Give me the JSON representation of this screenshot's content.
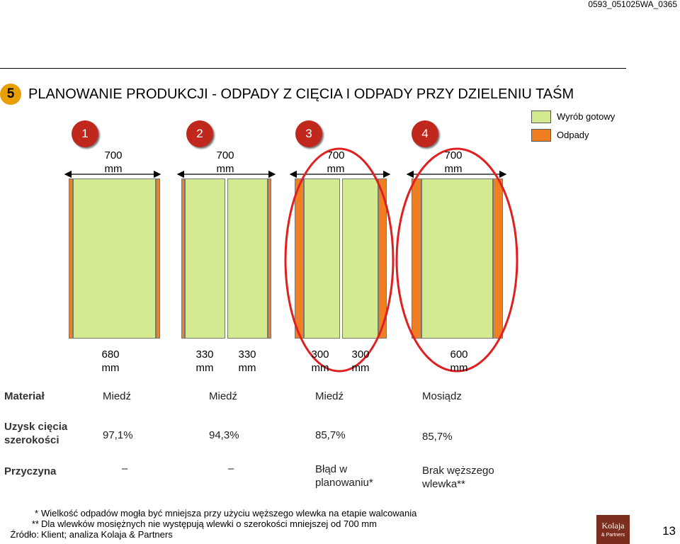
{
  "doc_code": "0593_051025WA_0365",
  "section_number": "5",
  "title": "PLANOWANIE PRODUKCJI - ODPADY Z CIĘCIA I ODPADY PRZY DZIELENIU TAŚM",
  "legend": [
    {
      "label": "Wyrób gotowy",
      "color": "#d3ea90"
    },
    {
      "label": "Odpady",
      "color": "#f07f24"
    }
  ],
  "colors": {
    "finished": "#d3ea90",
    "waste": "#f07f24",
    "badge": "#c0281e",
    "highlight": "#e02020"
  },
  "cases": [
    {
      "number": "1",
      "top_width": [
        "700",
        "mm"
      ],
      "bottom_widths": [
        [
          "680",
          "mm"
        ]
      ],
      "material": "Miedź",
      "yield": "97,1%",
      "reason": [
        "–"
      ]
    },
    {
      "number": "2",
      "top_width": [
        "700",
        "mm"
      ],
      "bottom_widths": [
        [
          "330",
          "mm"
        ],
        [
          "330",
          "mm"
        ]
      ],
      "material": "Miedź",
      "yield": "94,3%",
      "reason": [
        "–"
      ]
    },
    {
      "number": "3",
      "top_width": [
        "700",
        "mm"
      ],
      "bottom_widths": [
        [
          "300",
          "mm"
        ],
        [
          "300",
          "mm"
        ]
      ],
      "material": "Miedź",
      "yield": "85,7%",
      "reason": [
        "Błąd w",
        "planowaniu*"
      ]
    },
    {
      "number": "4",
      "top_width": [
        "700",
        "mm"
      ],
      "bottom_widths": [
        [
          "600",
          "mm"
        ]
      ],
      "material": "Mosiądz",
      "yield": "85,7%",
      "reason": [
        "Brak węższego",
        "wlewka**"
      ]
    }
  ],
  "row_labels": {
    "material": "Materiał",
    "yield": [
      "Uzysk cięcia",
      "szerokości"
    ],
    "reason": "Przyczyna"
  },
  "footnotes": [
    {
      "mark": "*",
      "text": "Wielkość odpadów mogła być mniejsza przy użyciu węższego wlewka na etapie walcowania"
    },
    {
      "mark": "**",
      "text": "Dla wlewków mosiężnych nie występują wlewki o szerokości mniejszej od 700 mm"
    },
    {
      "mark": "Źródło:",
      "text": "Klient; analiza Kolaja & Partners"
    }
  ],
  "logo": {
    "name": "Kolaja",
    "sub": "& Partners"
  },
  "page_number": "13"
}
